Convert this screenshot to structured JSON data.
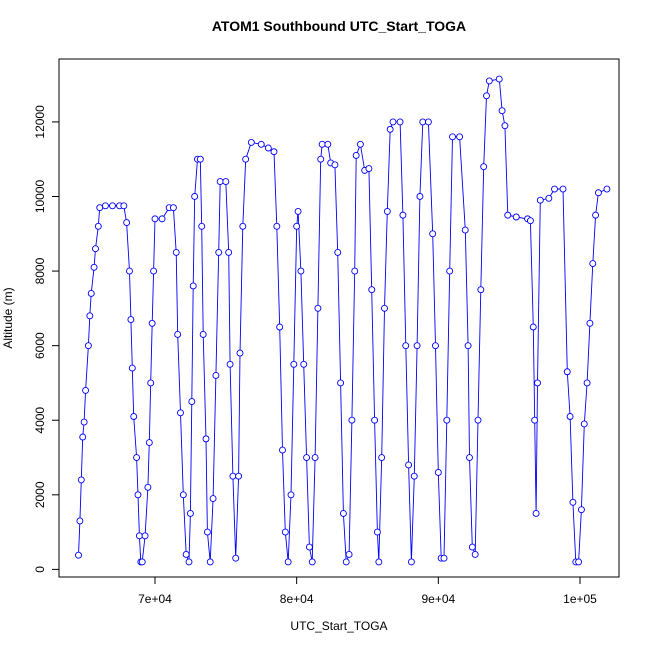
{
  "chart_data": {
    "type": "line",
    "title": "ATOM1 Southbound UTC_Start_TOGA",
    "x_label": "UTC_Start_TOGA",
    "y_label": "Altitude (m)",
    "color": "#0000ff",
    "marker": "circle",
    "x": [
      64600,
      64700,
      64800,
      64900,
      65000,
      65100,
      65300,
      65400,
      65500,
      65700,
      65800,
      66000,
      66100,
      66500,
      67000,
      67500,
      67800,
      68000,
      68200,
      68300,
      68400,
      68500,
      68700,
      68800,
      68900,
      69000,
      69100,
      69300,
      69500,
      69600,
      69700,
      69800,
      69900,
      70000,
      70500,
      71000,
      71300,
      71500,
      71600,
      71800,
      72000,
      72200,
      72400,
      72500,
      72600,
      72700,
      72800,
      73000,
      73200,
      73300,
      73400,
      73600,
      73700,
      73900,
      74100,
      74300,
      74500,
      74600,
      75000,
      75200,
      75300,
      75500,
      75700,
      75900,
      76000,
      76200,
      76400,
      76800,
      77500,
      78000,
      78400,
      78600,
      78800,
      79000,
      79200,
      79400,
      79600,
      79800,
      80000,
      80100,
      80300,
      80500,
      80700,
      80900,
      81100,
      81300,
      81500,
      81700,
      81800,
      82200,
      82400,
      82700,
      82900,
      83100,
      83300,
      83500,
      83700,
      83900,
      84100,
      84200,
      84500,
      84800,
      85100,
      85300,
      85500,
      85700,
      85800,
      86000,
      86200,
      86400,
      86600,
      86800,
      87300,
      87500,
      87700,
      87900,
      88100,
      88300,
      88500,
      88700,
      88900,
      89300,
      89600,
      89800,
      90000,
      90200,
      90400,
      90600,
      90800,
      91000,
      91500,
      91900,
      92100,
      92200,
      92400,
      92600,
      92800,
      93000,
      93200,
      93400,
      93600,
      94300,
      94500,
      94700,
      94900,
      95500,
      96300,
      96500,
      96700,
      96800,
      96900,
      97000,
      97200,
      97800,
      98200,
      98800,
      99100,
      99300,
      99500,
      99700,
      99900,
      100100,
      100300,
      100500,
      100700,
      100900,
      101100,
      101300,
      101900
    ],
    "values": [
      380,
      1300,
      2400,
      3550,
      3950,
      4800,
      6000,
      6800,
      7400,
      8100,
      8600,
      9200,
      9700,
      9750,
      9750,
      9750,
      9750,
      9300,
      8000,
      6700,
      5400,
      4100,
      3000,
      2000,
      900,
      200,
      200,
      900,
      2200,
      3400,
      5000,
      6600,
      8000,
      9400,
      9400,
      9700,
      9700,
      8500,
      6300,
      4200,
      2000,
      400,
      200,
      1500,
      4500,
      7600,
      10000,
      11000,
      11000,
      9200,
      6300,
      3500,
      1000,
      200,
      1900,
      5200,
      8500,
      10400,
      10400,
      8500,
      5500,
      2500,
      300,
      2500,
      5800,
      9200,
      11000,
      11450,
      11400,
      11300,
      11200,
      9200,
      6500,
      3200,
      1000,
      200,
      2000,
      5500,
      9200,
      9600,
      8000,
      5500,
      3000,
      600,
      200,
      3000,
      7000,
      11000,
      11400,
      11400,
      10900,
      10850,
      8500,
      5000,
      1500,
      200,
      400,
      4000,
      8000,
      11100,
      11400,
      10700,
      10750,
      7500,
      4000,
      1000,
      200,
      3000,
      7000,
      9600,
      11800,
      12000,
      12000,
      9500,
      6000,
      2800,
      200,
      2500,
      6000,
      10000,
      12000,
      12000,
      9000,
      6000,
      2600,
      300,
      300,
      4000,
      8000,
      11600,
      11600,
      9100,
      6000,
      3000,
      600,
      400,
      4000,
      7500,
      10800,
      12700,
      13100,
      13150,
      12300,
      11900,
      9500,
      9450,
      9400,
      9350,
      6500,
      4000,
      1500,
      5000,
      9900,
      9950,
      10200,
      10200,
      5300,
      4100,
      1800,
      200,
      200,
      1600,
      3900,
      5000,
      6600,
      8200,
      9500,
      10100,
      10200
    ],
    "xlim": [
      63225,
      102752
    ],
    "xticks": [
      {
        "value": 70000,
        "label": "7e+04"
      },
      {
        "value": 80000,
        "label": "8e+04"
      },
      {
        "value": 90000,
        "label": "9e+04"
      },
      {
        "value": 100000,
        "label": "1e+05"
      }
    ],
    "ylim": [
      -204,
      13687
    ],
    "yticks": [
      0,
      2000,
      4000,
      6000,
      8000,
      10000,
      12000
    ]
  }
}
